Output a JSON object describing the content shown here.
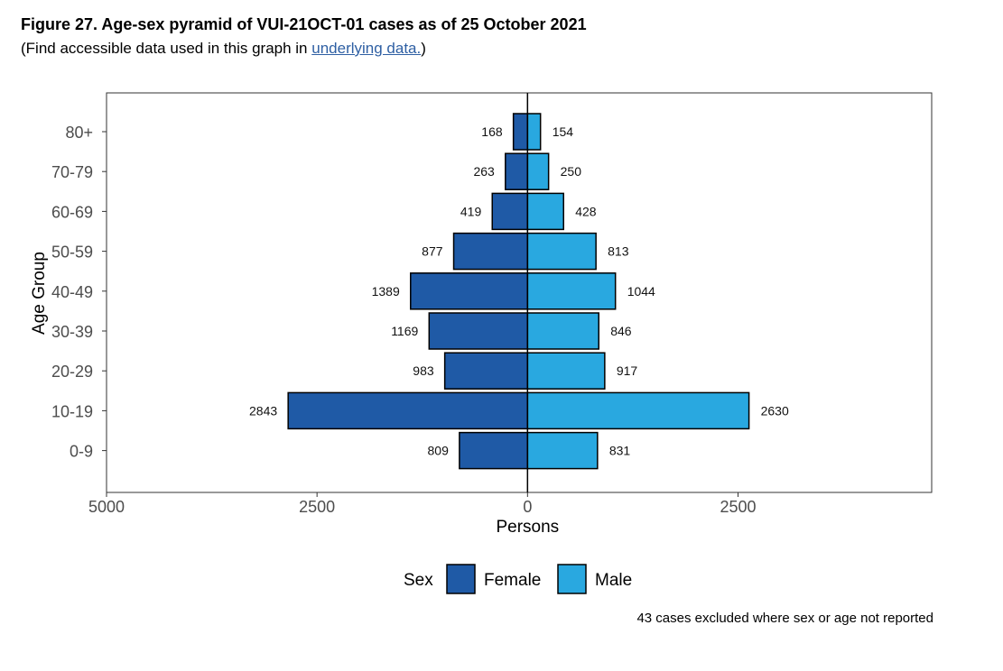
{
  "header": {
    "title": "Figure 27. Age-sex pyramid of VUI-21OCT-01 cases as of 25 October 2021",
    "subtitle_prefix": "(Find accessible data used in this graph in ",
    "link_text": "underlying data.",
    "subtitle_suffix": ")"
  },
  "chart_data": {
    "type": "bar",
    "orientation": "horizontal-pyramid",
    "categories": [
      "80+",
      "70-79",
      "60-69",
      "50-59",
      "40-49",
      "30-39",
      "20-29",
      "10-19",
      "0-9"
    ],
    "series": [
      {
        "name": "Female",
        "values": [
          168,
          263,
          419,
          877,
          1389,
          1169,
          983,
          2843,
          809
        ],
        "color": "#1f5aa6"
      },
      {
        "name": "Male",
        "values": [
          154,
          250,
          428,
          813,
          1044,
          846,
          917,
          2630,
          831
        ],
        "color": "#29a8e0"
      }
    ],
    "xlabel": "Persons",
    "ylabel": "Age Group",
    "xlim": [
      -5000,
      4800
    ],
    "xticks": [
      -5000,
      -2500,
      0,
      2500
    ],
    "xtick_labels": [
      "5000",
      "2500",
      "0",
      "2500"
    ],
    "legend": {
      "title": "Sex",
      "placement": "bottom"
    },
    "grid": false
  },
  "footnote": "43 cases excluded where sex or age not reported"
}
